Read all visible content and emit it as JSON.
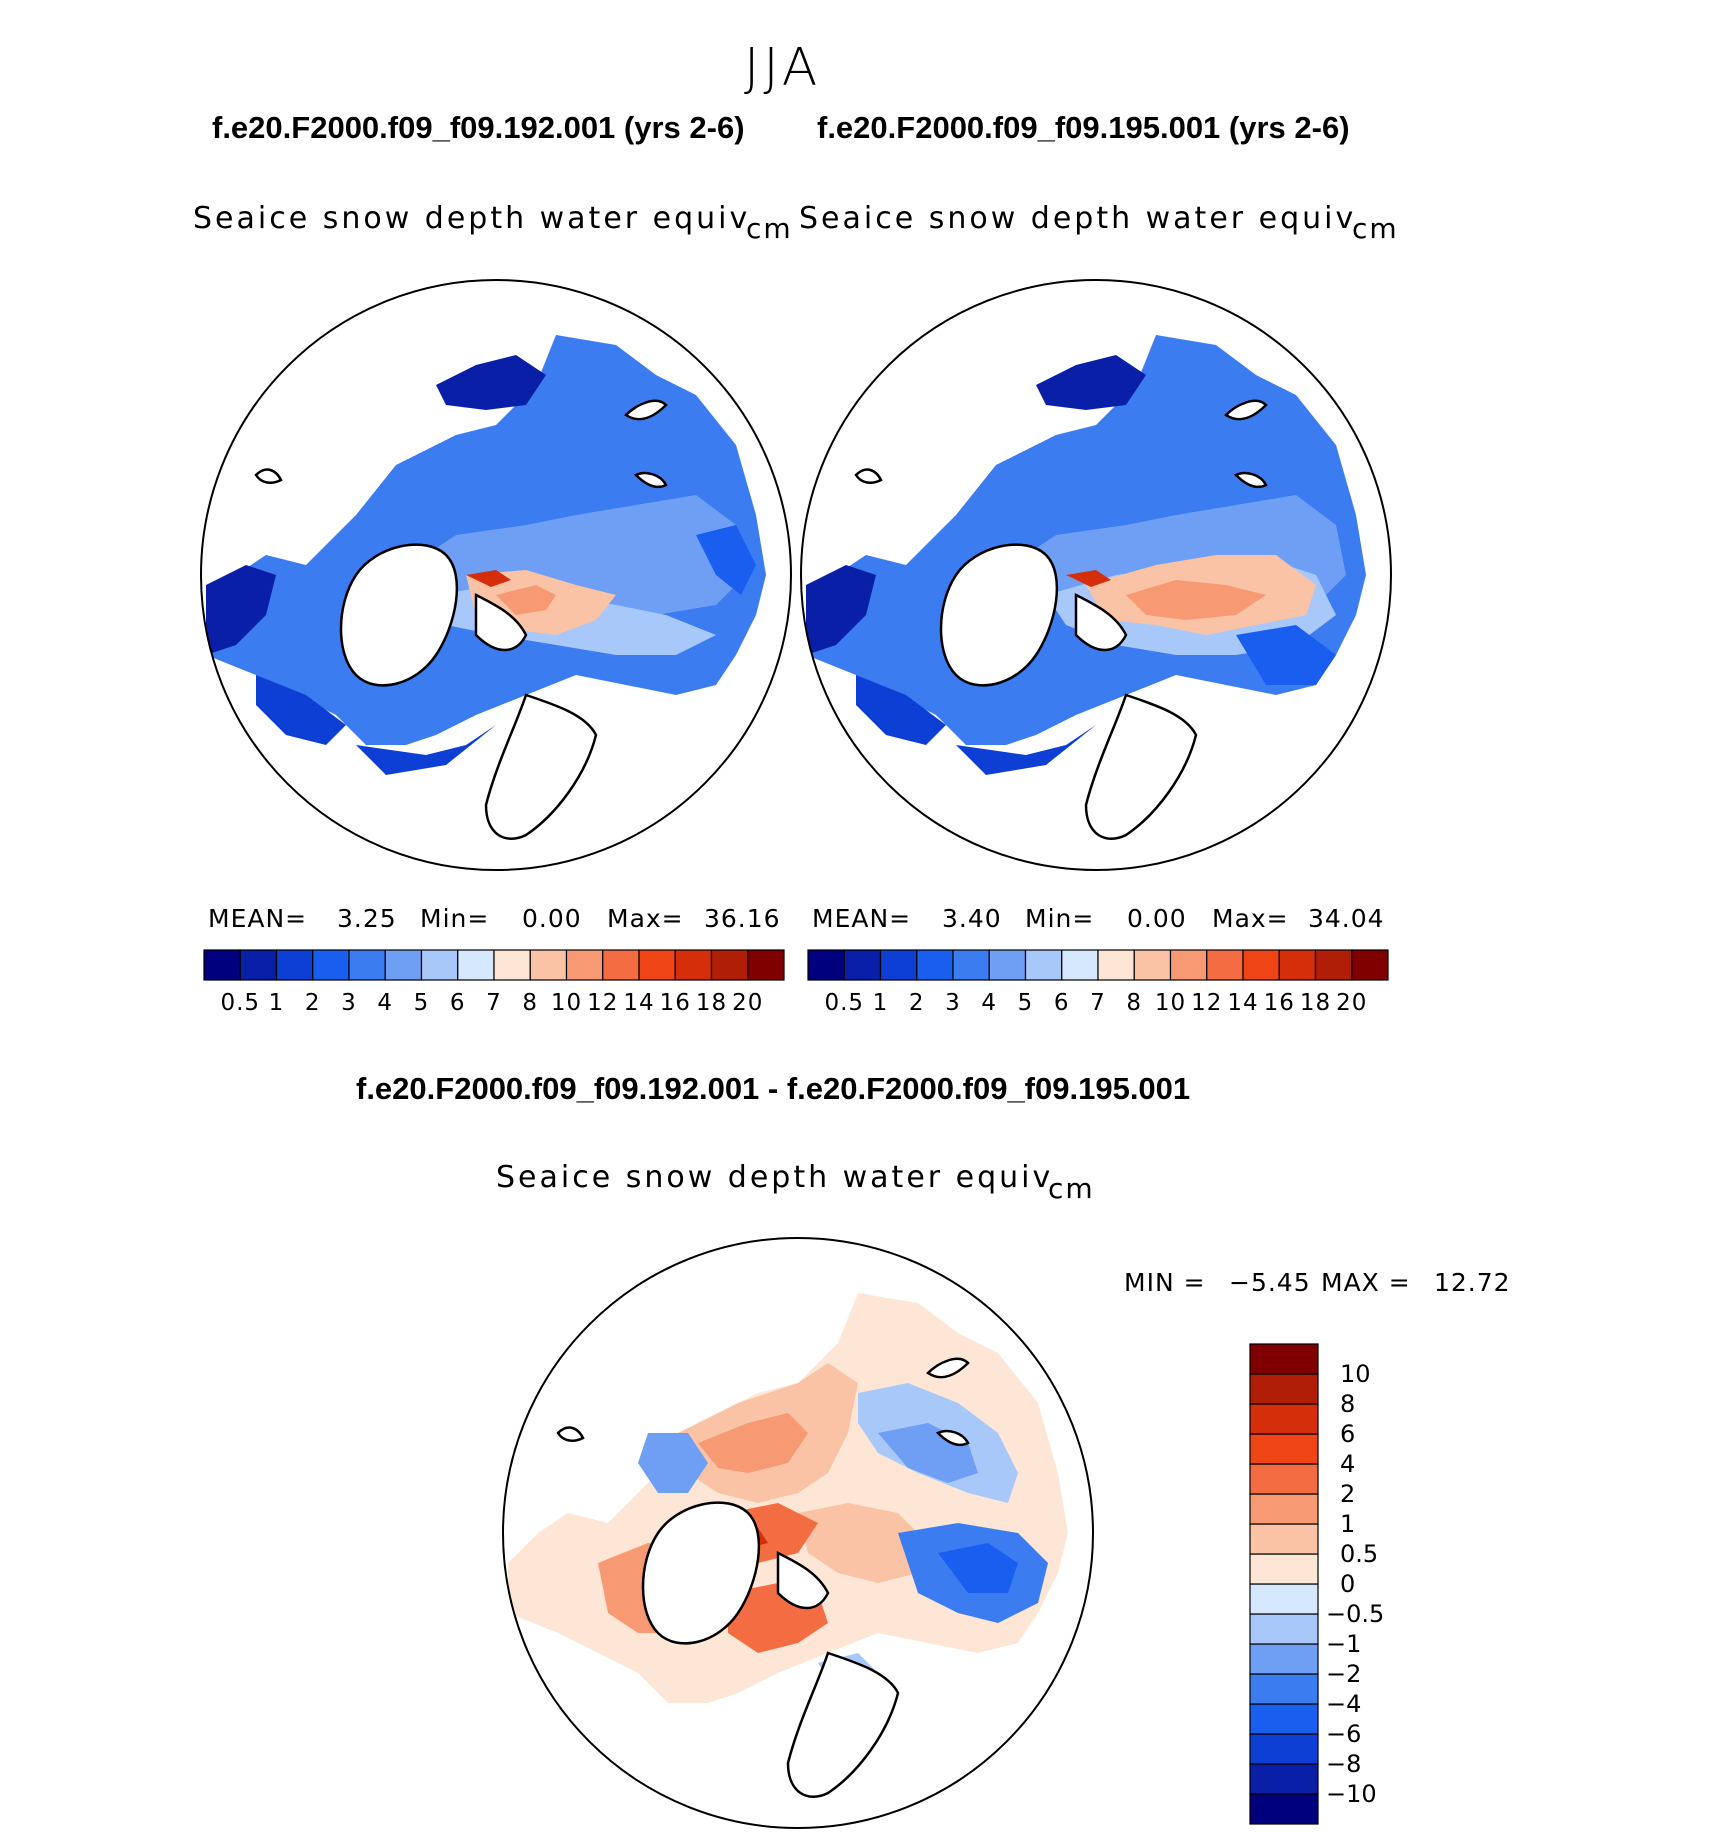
{
  "season": "JJA",
  "panels": [
    {
      "case_title": "f.e20.F2000.f09_f09.192.001 (yrs 2-6)",
      "variable": "Seaice snow depth water equiv",
      "units": "cm",
      "stats": {
        "mean_label": "MEAN=",
        "mean": "3.25",
        "min_label": "Min=",
        "min": "0.00",
        "max_label": "Max=",
        "max": "36.16"
      }
    },
    {
      "case_title": "f.e20.F2000.f09_f09.195.001 (yrs 2-6)",
      "variable": "Seaice snow depth water equiv",
      "units": "cm",
      "stats": {
        "mean_label": "MEAN=",
        "mean": "3.40",
        "min_label": "Min=",
        "min": "0.00",
        "max_label": "Max=",
        "max": "34.04"
      }
    }
  ],
  "diff_panel": {
    "title": "f.e20.F2000.f09_f09.192.001 - f.e20.F2000.f09_f09.195.001",
    "variable": "Seaice snow depth water equiv",
    "units": "cm",
    "min_label": "MIN =",
    "min": "−5.45",
    "max_label": "MAX =",
    "max": "12.72"
  },
  "colors": {
    "abs_palette": [
      "#00007e",
      "#0a1fa8",
      "#0d3fd4",
      "#1a5ef0",
      "#3b7cf0",
      "#6e9ff5",
      "#a9c8fa",
      "#d6e8fd",
      "#fde6d5",
      "#fbc3a5",
      "#f79a73",
      "#f46c42",
      "#ef4516",
      "#d52e0a",
      "#b11e07",
      "#800000"
    ],
    "diff_palette": [
      "#00007e",
      "#0a1fa8",
      "#0d3fd4",
      "#1a5ef0",
      "#3b7cf0",
      "#6e9ff5",
      "#a9c8fa",
      "#d6e8fd",
      "#fde6d5",
      "#fbc3a5",
      "#f79a73",
      "#f46c42",
      "#ef4516",
      "#d52e0a",
      "#b11e07",
      "#800000"
    ]
  },
  "chart_data": [
    {
      "type": "heatmap",
      "title": "Seaice snow depth water equiv",
      "case": "f.e20.F2000.f09_f09.192.001 (yrs 2-6)",
      "projection": "north polar stereographic",
      "units": "cm",
      "colorbar_ticks": [
        "0.5",
        "1",
        "2",
        "3",
        "4",
        "5",
        "6",
        "7",
        "8",
        "10",
        "12",
        "14",
        "16",
        "18",
        "20"
      ],
      "summary": {
        "mean": 3.25,
        "min": 0.0,
        "max": 36.16
      }
    },
    {
      "type": "heatmap",
      "title": "Seaice snow depth water equiv",
      "case": "f.e20.F2000.f09_f09.195.001 (yrs 2-6)",
      "projection": "north polar stereographic",
      "units": "cm",
      "colorbar_ticks": [
        "0.5",
        "1",
        "2",
        "3",
        "4",
        "5",
        "6",
        "7",
        "8",
        "10",
        "12",
        "14",
        "16",
        "18",
        "20"
      ],
      "summary": {
        "mean": 3.4,
        "min": 0.0,
        "max": 34.04
      }
    },
    {
      "type": "heatmap",
      "title": "Seaice snow depth water equiv",
      "case": "f.e20.F2000.f09_f09.192.001 - f.e20.F2000.f09_f09.195.001",
      "projection": "north polar stereographic",
      "units": "cm",
      "colorbar_ticks": [
        "10",
        "8",
        "6",
        "4",
        "2",
        "1",
        "0.5",
        "0",
        "−0.5",
        "−1",
        "−2",
        "−4",
        "−6",
        "−8",
        "−10"
      ],
      "summary": {
        "min": -5.45,
        "max": 12.72
      }
    }
  ]
}
